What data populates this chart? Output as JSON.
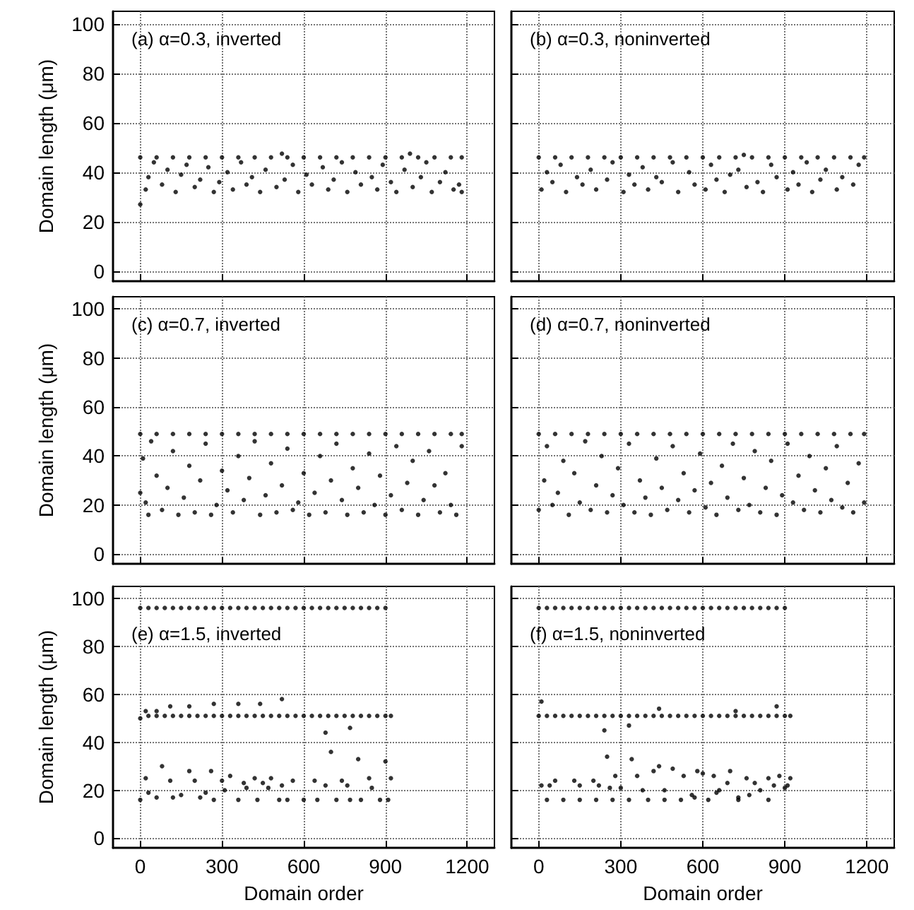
{
  "chart_data": [
    {
      "type": "scatter",
      "title": "(a) α=0.3, inverted",
      "ylabel": "Domain length (μm)",
      "xlim": [
        -100,
        1300
      ],
      "ylim": [
        -4,
        105
      ],
      "xticks": [
        0,
        300,
        600,
        900,
        1200
      ],
      "yticks": [
        0,
        20,
        40,
        60,
        80,
        100
      ],
      "grid": true,
      "marker": "circle",
      "tick_labels": "y",
      "series": [
        {
          "color": "#000000",
          "x": [
            0,
            0,
            20,
            30,
            50,
            60,
            80,
            100,
            120,
            130,
            150,
            170,
            180,
            200,
            220,
            240,
            250,
            270,
            290,
            300,
            320,
            340,
            360,
            370,
            390,
            410,
            420,
            440,
            460,
            480,
            500,
            520,
            530,
            540,
            560,
            580,
            600,
            610,
            630,
            660,
            670,
            690,
            710,
            720,
            740,
            760,
            780,
            790,
            810,
            840,
            850,
            870,
            890,
            900,
            920,
            940,
            960,
            970,
            990,
            1000,
            1020,
            1030,
            1050,
            1070,
            1080,
            1100,
            1120,
            1140,
            1150,
            1170,
            1180,
            1180
          ],
          "values": [
            27,
            46,
            33,
            38,
            44,
            46,
            35,
            41,
            46,
            32,
            39,
            43,
            46,
            34,
            37,
            46,
            42,
            32,
            36,
            46,
            40,
            33,
            46,
            44,
            35,
            38,
            46,
            32,
            41,
            46,
            34,
            47.5,
            37,
            46,
            43,
            32,
            46,
            39,
            35,
            46,
            42,
            33,
            37,
            46,
            44,
            32,
            46,
            40,
            35,
            46,
            38,
            33,
            43,
            46,
            36,
            32,
            46,
            41,
            47.5,
            34,
            46,
            38,
            44,
            32,
            46,
            36,
            40,
            46,
            33,
            35,
            46,
            32
          ]
        }
      ]
    },
    {
      "type": "scatter",
      "title": "(b) α=0.3, noninverted",
      "xlim": [
        -100,
        1300
      ],
      "ylim": [
        -4,
        105
      ],
      "xticks": [
        0,
        300,
        600,
        900,
        1200
      ],
      "yticks": [
        0,
        20,
        40,
        60,
        80,
        100
      ],
      "grid": true,
      "marker": "circle",
      "tick_labels": false,
      "series": [
        {
          "color": "#000000",
          "x": [
            0,
            10,
            30,
            50,
            60,
            80,
            100,
            120,
            140,
            160,
            180,
            190,
            210,
            240,
            250,
            270,
            300,
            310,
            330,
            350,
            360,
            380,
            400,
            420,
            430,
            450,
            480,
            490,
            510,
            540,
            550,
            570,
            600,
            610,
            630,
            650,
            660,
            680,
            700,
            720,
            730,
            750,
            760,
            780,
            800,
            820,
            840,
            850,
            870,
            900,
            910,
            930,
            950,
            960,
            980,
            1000,
            1020,
            1030,
            1050,
            1080,
            1090,
            1110,
            1140,
            1150,
            1170,
            1190
          ],
          "values": [
            46,
            33,
            40,
            36,
            46,
            43,
            32,
            46,
            38,
            35,
            46,
            41,
            33,
            46,
            37,
            44,
            46,
            32,
            39,
            35,
            46,
            42,
            33,
            46,
            38,
            36,
            46,
            44,
            32,
            46,
            40,
            35,
            46,
            33,
            43,
            37,
            46,
            32,
            39,
            46,
            41,
            47,
            34,
            46,
            36,
            32,
            46,
            43,
            38,
            46,
            33,
            40,
            35,
            46,
            44,
            32,
            46,
            37,
            41,
            46,
            33,
            38,
            46,
            35,
            43,
            46
          ]
        }
      ]
    },
    {
      "type": "scatter",
      "title": "(c) α=0.7, inverted",
      "ylabel": "Domain length (μm)",
      "xlim": [
        -100,
        1300
      ],
      "ylim": [
        -4,
        105
      ],
      "xticks": [
        0,
        300,
        600,
        900,
        1200
      ],
      "yticks": [
        0,
        20,
        40,
        60,
        80,
        100
      ],
      "grid": true,
      "marker": "circle",
      "tick_labels": "y",
      "series": [
        {
          "color": "#000000",
          "x": [
            0,
            0,
            10,
            20,
            30,
            40,
            60,
            60,
            80,
            100,
            120,
            120,
            140,
            160,
            180,
            180,
            200,
            220,
            240,
            240,
            260,
            280,
            300,
            300,
            320,
            340,
            360,
            360,
            380,
            400,
            420,
            420,
            440,
            460,
            480,
            480,
            500,
            520,
            540,
            540,
            560,
            580,
            600,
            600,
            620,
            640,
            660,
            660,
            680,
            700,
            720,
            720,
            740,
            760,
            780,
            780,
            800,
            820,
            840,
            840,
            860,
            880,
            900,
            900,
            920,
            940,
            960,
            960,
            980,
            1000,
            1020,
            1020,
            1040,
            1060,
            1080,
            1080,
            1100,
            1120,
            1140,
            1140,
            1160,
            1180,
            1180
          ],
          "values": [
            49,
            25,
            39,
            21,
            16,
            46,
            49,
            32,
            18,
            27,
            49,
            42,
            16,
            23,
            49,
            36,
            17,
            30,
            49,
            45,
            16,
            20,
            49,
            34,
            26,
            17,
            49,
            40,
            22,
            31,
            49,
            46,
            16,
            24,
            49,
            37,
            17,
            28,
            49,
            43,
            18,
            21,
            49,
            33,
            16,
            25,
            49,
            40,
            17,
            30,
            49,
            45,
            22,
            16,
            49,
            35,
            27,
            17,
            49,
            41,
            20,
            32,
            49,
            16,
            24,
            44,
            49,
            18,
            29,
            38,
            49,
            16,
            22,
            42,
            49,
            28,
            17,
            33,
            49,
            20,
            16,
            44,
            49
          ]
        }
      ]
    },
    {
      "type": "scatter",
      "title": "(d) α=0.7, noninverted",
      "xlim": [
        -100,
        1300
      ],
      "ylim": [
        -4,
        105
      ],
      "xticks": [
        0,
        300,
        600,
        900,
        1200
      ],
      "yticks": [
        0,
        20,
        40,
        60,
        80,
        100
      ],
      "grid": true,
      "marker": "circle",
      "tick_labels": false,
      "series": [
        {
          "color": "#000000",
          "x": [
            0,
            0,
            20,
            30,
            50,
            60,
            70,
            90,
            110,
            120,
            130,
            150,
            170,
            180,
            190,
            210,
            230,
            240,
            250,
            270,
            290,
            300,
            310,
            330,
            350,
            360,
            370,
            390,
            410,
            420,
            430,
            450,
            470,
            480,
            490,
            510,
            530,
            540,
            550,
            570,
            590,
            600,
            610,
            630,
            650,
            660,
            670,
            690,
            710,
            720,
            730,
            750,
            770,
            780,
            790,
            810,
            830,
            840,
            850,
            870,
            890,
            900,
            910,
            930,
            950,
            960,
            970,
            990,
            1010,
            1020,
            1030,
            1050,
            1070,
            1080,
            1090,
            1110,
            1130,
            1140,
            1150,
            1170,
            1190,
            1190
          ],
          "values": [
            49,
            18,
            30,
            44,
            20,
            49,
            25,
            38,
            16,
            49,
            33,
            21,
            46,
            49,
            18,
            28,
            40,
            49,
            17,
            24,
            35,
            49,
            20,
            45,
            17,
            49,
            30,
            23,
            16,
            49,
            39,
            27,
            18,
            49,
            44,
            22,
            33,
            49,
            17,
            26,
            41,
            49,
            19,
            29,
            16,
            49,
            36,
            23,
            45,
            49,
            18,
            31,
            20,
            49,
            42,
            17,
            27,
            49,
            38,
            16,
            24,
            49,
            45,
            21,
            32,
            49,
            18,
            40,
            26,
            49,
            17,
            35,
            22,
            49,
            44,
            19,
            29,
            49,
            17,
            37,
            21,
            49
          ]
        }
      ]
    },
    {
      "type": "scatter",
      "title": "(e) α=1.5, inverted",
      "ylabel": "Domain length (μm)",
      "xlabel": "Domain order",
      "xlim": [
        -100,
        1300
      ],
      "ylim": [
        -4,
        105
      ],
      "xticks": [
        0,
        300,
        600,
        900,
        1200
      ],
      "yticks": [
        0,
        20,
        40,
        60,
        80,
        100
      ],
      "grid": true,
      "marker": "circle",
      "series": [
        {
          "color": "#000000",
          "x": [
            0,
            30,
            60,
            90,
            120,
            150,
            180,
            210,
            240,
            270,
            300,
            330,
            360,
            390,
            420,
            450,
            480,
            510,
            540,
            570,
            600,
            630,
            660,
            690,
            720,
            750,
            780,
            810,
            840,
            870,
            900,
            0,
            30,
            60,
            90,
            120,
            150,
            180,
            210,
            240,
            270,
            300,
            330,
            360,
            390,
            420,
            450,
            480,
            510,
            540,
            570,
            600,
            630,
            660,
            690,
            720,
            750,
            780,
            810,
            840,
            870,
            900,
            920,
            20,
            60,
            110,
            180,
            270,
            360,
            440,
            520,
            0,
            20,
            30,
            60,
            80,
            110,
            120,
            150,
            180,
            200,
            220,
            240,
            260,
            270,
            300,
            310,
            330,
            360,
            380,
            390,
            420,
            430,
            450,
            470,
            480,
            510,
            520,
            540,
            560,
            600,
            640,
            650,
            680,
            680,
            700,
            720,
            740,
            760,
            770,
            770,
            800,
            810,
            840,
            850,
            880,
            900,
            910,
            920
          ],
          "values": [
            96,
            96,
            96,
            96,
            96,
            96,
            96,
            96,
            96,
            96,
            96,
            96,
            96,
            96,
            96,
            96,
            96,
            96,
            96,
            96,
            96,
            96,
            96,
            96,
            96,
            96,
            96,
            96,
            96,
            96,
            96,
            50,
            51,
            51,
            51,
            51,
            51,
            51,
            51,
            51,
            51,
            51,
            51,
            51,
            51,
            51,
            51,
            51,
            51,
            51,
            51,
            51,
            51,
            51,
            51,
            51,
            51,
            51,
            51,
            51,
            51,
            51,
            51,
            53,
            53,
            55,
            55,
            56,
            56,
            56,
            58,
            16,
            25,
            19,
            17,
            30,
            24,
            17,
            18,
            28,
            24,
            17,
            19,
            28,
            16,
            24,
            20,
            26,
            16,
            23,
            21,
            25,
            16,
            23,
            21,
            25,
            16,
            22,
            16,
            24,
            16,
            24,
            16,
            22,
            44,
            36,
            16,
            24,
            22,
            16,
            46,
            33,
            16,
            25,
            21,
            16,
            32,
            16,
            25
          ]
        }
      ]
    },
    {
      "type": "scatter",
      "title": "(f) α=1.5, noninverted",
      "xlabel": "Domain order",
      "xlim": [
        -100,
        1300
      ],
      "ylim": [
        -4,
        105
      ],
      "xticks": [
        0,
        300,
        600,
        900,
        1200
      ],
      "yticks": [
        0,
        20,
        40,
        60,
        80,
        100
      ],
      "grid": true,
      "marker": "circle",
      "tick_labels": "x",
      "series": [
        {
          "color": "#000000",
          "x": [
            0,
            30,
            60,
            90,
            120,
            150,
            180,
            210,
            240,
            270,
            300,
            330,
            360,
            390,
            420,
            450,
            480,
            510,
            540,
            570,
            600,
            630,
            660,
            690,
            720,
            750,
            780,
            810,
            840,
            870,
            900,
            0,
            30,
            60,
            90,
            120,
            150,
            180,
            210,
            240,
            270,
            300,
            330,
            360,
            390,
            420,
            450,
            480,
            510,
            540,
            570,
            600,
            630,
            660,
            690,
            720,
            750,
            780,
            810,
            840,
            870,
            900,
            920,
            10,
            440,
            720,
            870,
            10,
            40,
            60,
            130,
            150,
            200,
            220,
            240,
            250,
            260,
            280,
            300,
            330,
            340,
            360,
            380,
            420,
            440,
            460,
            490,
            530,
            560,
            570,
            580,
            600,
            640,
            650,
            660,
            690,
            700,
            730,
            760,
            770,
            790,
            810,
            840,
            860,
            880,
            900,
            910,
            920,
            30,
            90,
            150,
            210,
            270,
            330,
            400,
            460,
            520,
            620,
            730,
            840
          ],
          "values": [
            96,
            96,
            96,
            96,
            96,
            96,
            96,
            96,
            96,
            96,
            96,
            96,
            96,
            96,
            96,
            96,
            96,
            96,
            96,
            96,
            96,
            96,
            96,
            96,
            96,
            96,
            96,
            96,
            96,
            96,
            96,
            51,
            51,
            51,
            51,
            51,
            51,
            51,
            51,
            51,
            51,
            51,
            51,
            51,
            51,
            51,
            51,
            51,
            51,
            51,
            51,
            51,
            51,
            51,
            51,
            51,
            51,
            51,
            51,
            51,
            51,
            51,
            51,
            57,
            54,
            53,
            55,
            22,
            22,
            24,
            24,
            22,
            24,
            22,
            45,
            34,
            21,
            26,
            21,
            47,
            33,
            26,
            20,
            28,
            30,
            20,
            29,
            26,
            18,
            17,
            28,
            27,
            26,
            19,
            20,
            23,
            28,
            17,
            25,
            18,
            23,
            20,
            25,
            22,
            26,
            21,
            22,
            25,
            16,
            16,
            16,
            16,
            16,
            16,
            16,
            16,
            16,
            16,
            16,
            16
          ]
        }
      ]
    }
  ]
}
